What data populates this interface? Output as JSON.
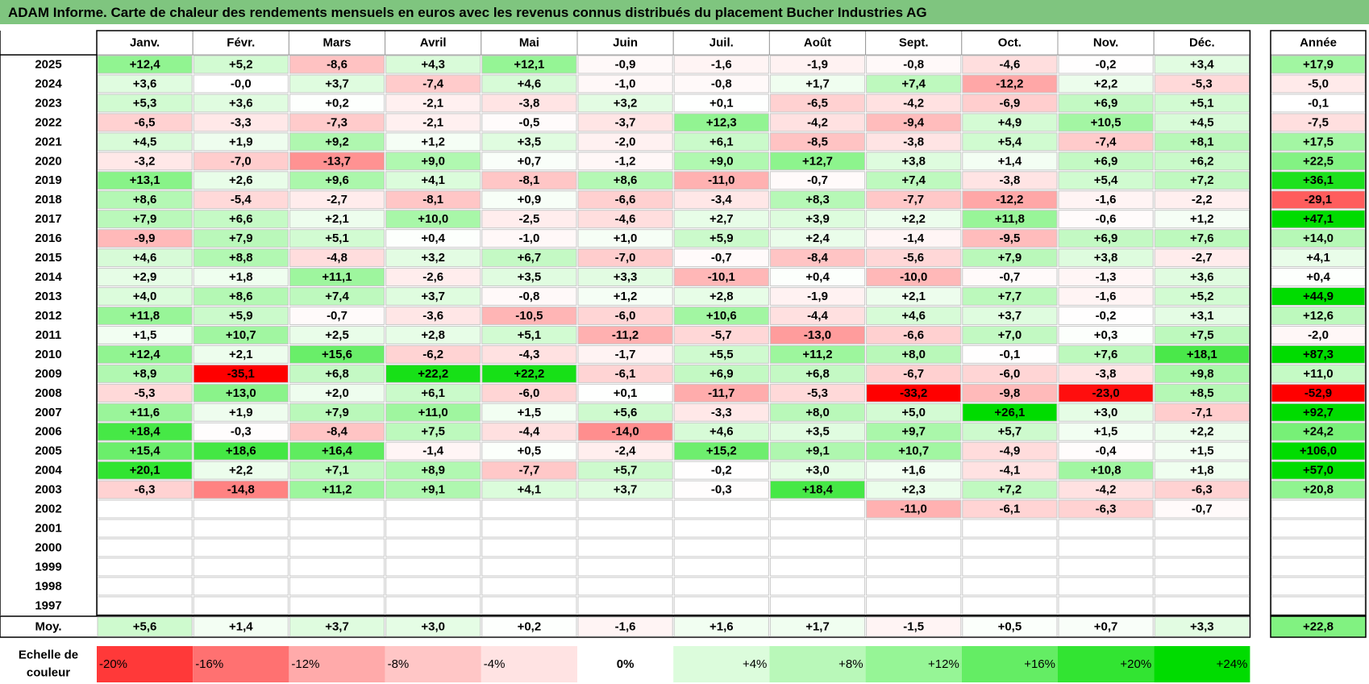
{
  "title": "ADAM Informe. Carte de chaleur des rendements mensuels en euros avec les revenus connus distribués du placement Bucher Industries AG",
  "colors": {
    "title_bg": "#7fc57f",
    "neg_max": "#ff0000",
    "pos_max": "#00dd00",
    "neutral": "#ffffff"
  },
  "chart_data": {
    "type": "heatmap",
    "months": [
      "Janv.",
      "Févr.",
      "Mars",
      "Avril",
      "Mai",
      "Juin",
      "Juil.",
      "Août",
      "Sept.",
      "Oct.",
      "Nov.",
      "Déc."
    ],
    "year_header": "Année",
    "years": [
      "2025",
      "2024",
      "2023",
      "2022",
      "2021",
      "2020",
      "2019",
      "2018",
      "2017",
      "2016",
      "2015",
      "2014",
      "2013",
      "2012",
      "2011",
      "2010",
      "2009",
      "2008",
      "2007",
      "2006",
      "2005",
      "2004",
      "2003",
      "2002",
      "2001",
      "2000",
      "1999",
      "1998",
      "1997"
    ],
    "values": [
      [
        "+12,4",
        "+5,2",
        "-8,6",
        "+4,3",
        "+12,1",
        "-0,9",
        "-1,6",
        "-1,9",
        "-0,8",
        "-4,6",
        "-0,2",
        "+3,4"
      ],
      [
        "+3,6",
        "-0,0",
        "+3,7",
        "-7,4",
        "+4,6",
        "-1,0",
        "-0,8",
        "+1,7",
        "+7,4",
        "-12,2",
        "+2,2",
        "-5,3"
      ],
      [
        "+5,3",
        "+3,6",
        "+0,2",
        "-2,1",
        "-3,8",
        "+3,2",
        "+0,1",
        "-6,5",
        "-4,2",
        "-6,9",
        "+6,9",
        "+5,1"
      ],
      [
        "-6,5",
        "-3,3",
        "-7,3",
        "-2,1",
        "-0,5",
        "-3,7",
        "+12,3",
        "-4,2",
        "-9,4",
        "+4,9",
        "+10,5",
        "+4,5"
      ],
      [
        "+4,5",
        "+1,9",
        "+9,2",
        "+1,2",
        "+3,5",
        "-2,0",
        "+6,1",
        "-8,5",
        "-3,8",
        "+5,4",
        "-7,4",
        "+8,1"
      ],
      [
        "-3,2",
        "-7,0",
        "-13,7",
        "+9,0",
        "+0,7",
        "-1,2",
        "+9,0",
        "+12,7",
        "+3,8",
        "+1,4",
        "+6,9",
        "+6,2"
      ],
      [
        "+13,1",
        "+2,6",
        "+9,6",
        "+4,1",
        "-8,1",
        "+8,6",
        "-11,0",
        "-0,7",
        "+7,4",
        "-3,8",
        "+5,4",
        "+7,2"
      ],
      [
        "+8,6",
        "-5,4",
        "-2,7",
        "-8,1",
        "+0,9",
        "-6,6",
        "-3,4",
        "+8,3",
        "-7,7",
        "-12,2",
        "-1,6",
        "-2,2"
      ],
      [
        "+7,9",
        "+6,6",
        "+2,1",
        "+10,0",
        "-2,5",
        "-4,6",
        "+2,7",
        "+3,9",
        "+2,2",
        "+11,8",
        "-0,6",
        "+1,2"
      ],
      [
        "-9,9",
        "+7,9",
        "+5,1",
        "+0,4",
        "-1,0",
        "+1,0",
        "+5,9",
        "+2,4",
        "-1,4",
        "-9,5",
        "+6,9",
        "+7,6"
      ],
      [
        "+4,6",
        "+8,8",
        "-4,8",
        "+3,2",
        "+6,7",
        "-7,0",
        "-0,7",
        "-8,4",
        "-5,6",
        "+7,9",
        "+3,8",
        "-2,7"
      ],
      [
        "+2,9",
        "+1,8",
        "+11,1",
        "-2,6",
        "+3,5",
        "+3,3",
        "-10,1",
        "+0,4",
        "-10,0",
        "-0,7",
        "-1,3",
        "+3,6"
      ],
      [
        "+4,0",
        "+8,6",
        "+7,4",
        "+3,7",
        "-0,8",
        "+1,2",
        "+2,8",
        "-1,9",
        "+2,1",
        "+7,7",
        "-1,6",
        "+5,2"
      ],
      [
        "+11,8",
        "+5,9",
        "-0,7",
        "-3,6",
        "-10,5",
        "-6,0",
        "+10,6",
        "-4,4",
        "+4,6",
        "+3,7",
        "-0,2",
        "+3,1"
      ],
      [
        "+1,5",
        "+10,7",
        "+2,5",
        "+2,8",
        "+5,1",
        "-11,2",
        "-5,7",
        "-13,0",
        "-6,6",
        "+7,0",
        "+0,3",
        "+7,5"
      ],
      [
        "+12,4",
        "+2,1",
        "+15,6",
        "-6,2",
        "-4,3",
        "-1,7",
        "+5,5",
        "+11,2",
        "+8,0",
        "-0,1",
        "+7,6",
        "+18,1"
      ],
      [
        "+8,9",
        "-35,1",
        "+6,8",
        "+22,2",
        "+22,2",
        "-6,1",
        "+6,9",
        "+6,8",
        "-6,7",
        "-6,0",
        "-3,8",
        "+9,8"
      ],
      [
        "-5,3",
        "+13,0",
        "+2,0",
        "+6,1",
        "-6,0",
        "+0,1",
        "-11,7",
        "-5,3",
        "-33,2",
        "-9,8",
        "-23,0",
        "+8,5"
      ],
      [
        "+11,6",
        "+1,9",
        "+7,9",
        "+11,0",
        "+1,5",
        "+5,6",
        "-3,3",
        "+8,0",
        "+5,0",
        "+26,1",
        "+3,0",
        "-7,1"
      ],
      [
        "+18,4",
        "-0,3",
        "-8,4",
        "+7,5",
        "-4,4",
        "-14,0",
        "+4,6",
        "+3,5",
        "+9,7",
        "+5,7",
        "+1,5",
        "+2,2"
      ],
      [
        "+15,4",
        "+18,6",
        "+16,4",
        "-1,4",
        "+0,5",
        "-2,4",
        "+15,2",
        "+9,1",
        "+10,7",
        "-4,9",
        "-0,4",
        "+1,5"
      ],
      [
        "+20,1",
        "+2,2",
        "+7,1",
        "+8,9",
        "-7,7",
        "+5,7",
        "-0,2",
        "+3,0",
        "+1,6",
        "-4,1",
        "+10,8",
        "+1,8"
      ],
      [
        "-6,3",
        "-14,8",
        "+11,2",
        "+9,1",
        "+4,1",
        "+3,7",
        "-0,3",
        "+18,4",
        "+2,3",
        "+7,2",
        "-4,2",
        "-6,3"
      ],
      [
        "",
        "",
        "",
        "",
        "",
        "",
        "",
        "",
        "-11,0",
        "-6,1",
        "-6,3",
        "-0,7"
      ],
      [
        "",
        "",
        "",
        "",
        "",
        "",
        "",
        "",
        "",
        "",
        "",
        ""
      ],
      [
        "",
        "",
        "",
        "",
        "",
        "",
        "",
        "",
        "",
        "",
        "",
        ""
      ],
      [
        "",
        "",
        "",
        "",
        "",
        "",
        "",
        "",
        "",
        "",
        "",
        ""
      ],
      [
        "",
        "",
        "",
        "",
        "",
        "",
        "",
        "",
        "",
        "",
        "",
        ""
      ],
      [
        "",
        "",
        "",
        "",
        "",
        "",
        "",
        "",
        "",
        "",
        "",
        ""
      ]
    ],
    "annual": [
      "+17,9",
      "-5,0",
      "-0,1",
      "-7,5",
      "+17,5",
      "+22,5",
      "+36,1",
      "-29,1",
      "+47,1",
      "+14,0",
      "+4,1",
      "+0,4",
      "+44,9",
      "+12,6",
      "-2,0",
      "+87,3",
      "+11,0",
      "-52,9",
      "+92,7",
      "+24,2",
      "+106,0",
      "+57,0",
      "+20,8",
      "",
      "",
      "",
      "",
      "",
      ""
    ],
    "average_label": "Moy.",
    "averages": [
      "+5,6",
      "+1,4",
      "+3,7",
      "+3,0",
      "+0,2",
      "-1,6",
      "+1,6",
      "+1,7",
      "-1,5",
      "+0,5",
      "+0,7",
      "+3,3"
    ],
    "average_annual": "+22,8",
    "scale_label_line1": "Echelle de",
    "scale_label_line2": "couleur",
    "scale": [
      "-20%",
      "-16%",
      "-12%",
      "-8%",
      "-4%",
      "0%",
      "+4%",
      "+8%",
      "+12%",
      "+16%",
      "+20%",
      "+24%"
    ],
    "scale_values": [
      -20,
      -16,
      -12,
      -8,
      -4,
      0,
      4,
      8,
      12,
      16,
      20,
      24
    ]
  }
}
